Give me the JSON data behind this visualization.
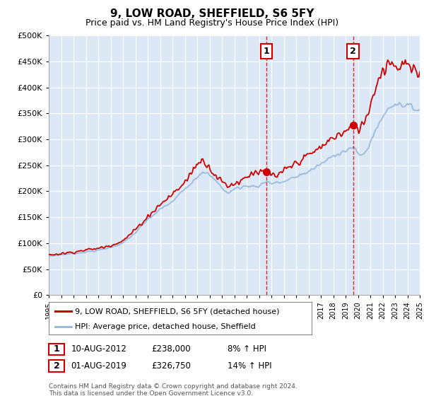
{
  "title": "9, LOW ROAD, SHEFFIELD, S6 5FY",
  "subtitle": "Price paid vs. HM Land Registry's House Price Index (HPI)",
  "legend_line1": "9, LOW ROAD, SHEFFIELD, S6 5FY (detached house)",
  "legend_line2": "HPI: Average price, detached house, Sheffield",
  "annotation1_date": "10-AUG-2012",
  "annotation1_price": "£238,000",
  "annotation1_hpi": "8% ↑ HPI",
  "annotation1_year": 2012.6,
  "annotation1_price_val": 238000,
  "annotation2_date": "01-AUG-2019",
  "annotation2_price": "£326,750",
  "annotation2_hpi": "14% ↑ HPI",
  "annotation2_year": 2019.6,
  "annotation2_price_val": 326750,
  "footer": "Contains HM Land Registry data © Crown copyright and database right 2024.\nThis data is licensed under the Open Government Licence v3.0.",
  "ylim": [
    0,
    500000
  ],
  "yticks": [
    0,
    50000,
    100000,
    150000,
    200000,
    250000,
    300000,
    350000,
    400000,
    450000,
    500000
  ],
  "background_color": "#dce8f5",
  "red_color": "#cc0000",
  "blue_color": "#99bbdd",
  "grid_color": "#ffffff"
}
